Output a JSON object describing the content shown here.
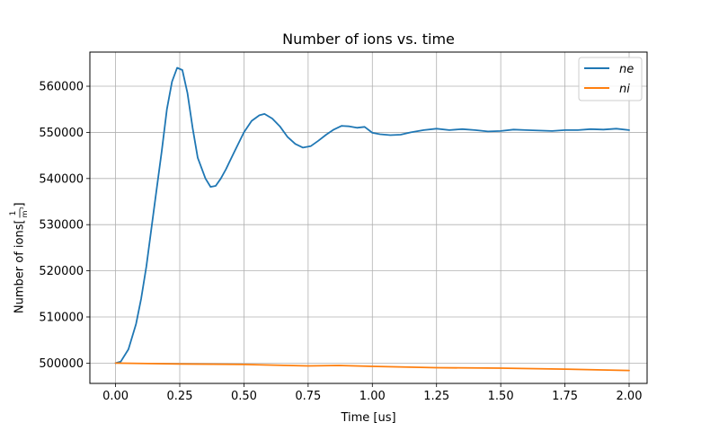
{
  "chart_data": {
    "type": "line",
    "title": "Number of ions vs. time",
    "xlabel": "Time [us]",
    "ylabel": "Number of ions [1/m³]",
    "ylabel_prefix": "Number of ions ",
    "ylabel_unit_num": "1",
    "ylabel_unit_den": "m",
    "ylabel_unit_exp": "3",
    "xlim": [
      -0.1,
      2.07
    ],
    "ylim": [
      495600,
      567400
    ],
    "xticks": [
      0.0,
      0.25,
      0.5,
      0.75,
      1.0,
      1.25,
      1.5,
      1.75,
      2.0
    ],
    "xtick_labels": [
      "0.00",
      "0.25",
      "0.50",
      "0.75",
      "1.00",
      "1.25",
      "1.50",
      "1.75",
      "2.00"
    ],
    "yticks": [
      500000,
      510000,
      520000,
      530000,
      540000,
      550000,
      560000
    ],
    "ytick_labels": [
      "500000",
      "510000",
      "520000",
      "530000",
      "540000",
      "550000",
      "560000"
    ],
    "grid": true,
    "legend_position": "top-right",
    "series": [
      {
        "name": "ne",
        "color": "#1f77b4",
        "x": [
          0.0,
          0.02,
          0.05,
          0.08,
          0.1,
          0.12,
          0.15,
          0.18,
          0.2,
          0.22,
          0.24,
          0.26,
          0.28,
          0.3,
          0.32,
          0.35,
          0.37,
          0.39,
          0.41,
          0.43,
          0.46,
          0.5,
          0.53,
          0.56,
          0.58,
          0.61,
          0.64,
          0.67,
          0.7,
          0.73,
          0.76,
          0.79,
          0.82,
          0.85,
          0.88,
          0.91,
          0.94,
          0.97,
          1.0,
          1.03,
          1.07,
          1.11,
          1.15,
          1.2,
          1.25,
          1.3,
          1.35,
          1.4,
          1.45,
          1.5,
          1.55,
          1.6,
          1.65,
          1.7,
          1.75,
          1.8,
          1.85,
          1.9,
          1.95,
          2.0
        ],
        "y": [
          500000,
          500300,
          503000,
          508500,
          514000,
          521000,
          533500,
          546000,
          555000,
          561000,
          564000,
          563500,
          558500,
          551000,
          544500,
          540000,
          538200,
          538400,
          540000,
          542000,
          545500,
          550000,
          552500,
          553700,
          554000,
          553000,
          551300,
          549000,
          547500,
          546700,
          547000,
          548200,
          549500,
          550600,
          551400,
          551300,
          551000,
          551200,
          549900,
          549600,
          549400,
          549500,
          550000,
          550500,
          550800,
          550500,
          550700,
          550500,
          550200,
          550300,
          550600,
          550500,
          550400,
          550300,
          550500,
          550500,
          550700,
          550600,
          550800,
          550500
        ]
      },
      {
        "name": "ni",
        "color": "#ff7f0e",
        "x": [
          0.0,
          0.25,
          0.5,
          0.75,
          0.87,
          1.0,
          1.25,
          1.5,
          1.75,
          2.0
        ],
        "y": [
          500000,
          499800,
          499700,
          499400,
          499500,
          499300,
          499000,
          498900,
          498700,
          498400
        ]
      }
    ]
  }
}
